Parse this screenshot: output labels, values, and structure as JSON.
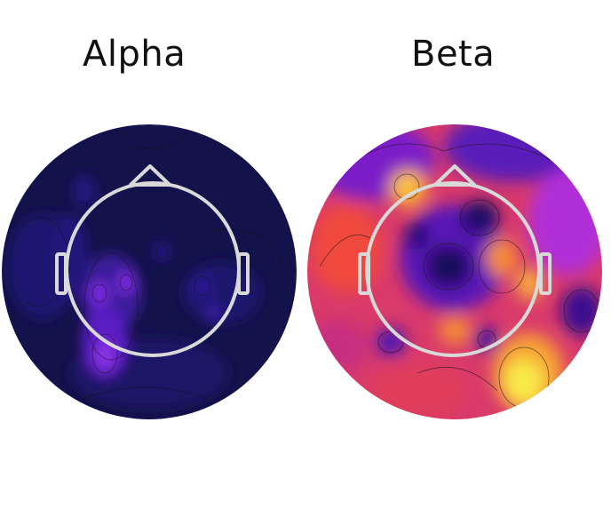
{
  "panels": [
    {
      "title": "Alpha",
      "colormap": "plasma-dark",
      "background_color": "#13124a",
      "peak_color": "#9b3be8"
    },
    {
      "title": "Beta",
      "colormap": "plasma",
      "background_color": "#e8384b",
      "peak_color": "#f8f24a"
    }
  ],
  "head_outline_color": "#d9d9d9",
  "contour_color": "#111111"
}
